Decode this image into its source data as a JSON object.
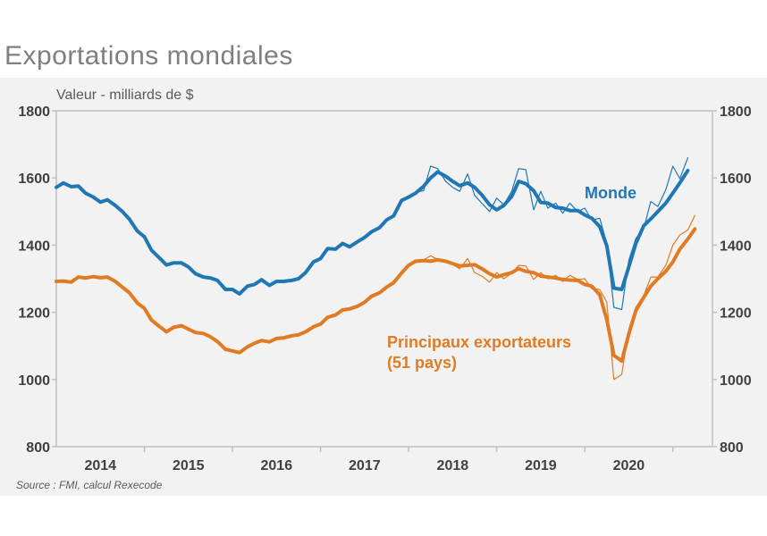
{
  "title": "Exportations mondiales",
  "colors": {
    "monde": "#1f77b4",
    "principaux": "#e07b24",
    "axis": "#bfbfbf",
    "panel": "#f2f2f2"
  },
  "chart_data": {
    "type": "line",
    "subtitle": "Valeur - milliards de $",
    "source": "Source : FMI, calcul Rexecode",
    "x_range": [
      2013.5,
      2020.95
    ],
    "ylim": [
      800,
      1800
    ],
    "yticks": [
      "800",
      "1000",
      "1200",
      "1400",
      "1600",
      "1800"
    ],
    "xticks": [
      "2014",
      "2015",
      "2016",
      "2017",
      "2018",
      "2019",
      "2020"
    ],
    "grid": false,
    "series": [
      {
        "name": "Monde",
        "color": "#1f77b4",
        "points": [
          [
            2013.5,
            1572
          ],
          [
            2013.58,
            1585
          ],
          [
            2013.67,
            1574
          ],
          [
            2013.75,
            1576
          ],
          [
            2013.83,
            1555
          ],
          [
            2013.92,
            1543
          ],
          [
            2014.0,
            1528
          ],
          [
            2014.08,
            1535
          ],
          [
            2014.17,
            1518
          ],
          [
            2014.25,
            1500
          ],
          [
            2014.33,
            1477
          ],
          [
            2014.42,
            1442
          ],
          [
            2014.5,
            1425
          ],
          [
            2014.58,
            1385
          ],
          [
            2014.67,
            1362
          ],
          [
            2014.75,
            1341
          ],
          [
            2014.83,
            1347
          ],
          [
            2014.92,
            1347
          ],
          [
            2015.0,
            1335
          ],
          [
            2015.08,
            1315
          ],
          [
            2015.17,
            1305
          ],
          [
            2015.25,
            1302
          ],
          [
            2015.33,
            1295
          ],
          [
            2015.42,
            1268
          ],
          [
            2015.5,
            1268
          ],
          [
            2015.58,
            1255
          ],
          [
            2015.67,
            1278
          ],
          [
            2015.75,
            1283
          ],
          [
            2015.83,
            1297
          ],
          [
            2015.92,
            1280
          ],
          [
            2016.0,
            1292
          ],
          [
            2016.08,
            1292
          ],
          [
            2016.17,
            1295
          ],
          [
            2016.25,
            1300
          ],
          [
            2016.33,
            1318
          ],
          [
            2016.42,
            1350
          ],
          [
            2016.5,
            1360
          ],
          [
            2016.58,
            1390
          ],
          [
            2016.67,
            1388
          ],
          [
            2016.75,
            1405
          ],
          [
            2016.83,
            1395
          ],
          [
            2016.92,
            1410
          ],
          [
            2017.0,
            1423
          ],
          [
            2017.08,
            1440
          ],
          [
            2017.17,
            1452
          ],
          [
            2017.25,
            1475
          ],
          [
            2017.33,
            1487
          ],
          [
            2017.42,
            1533
          ],
          [
            2017.5,
            1543
          ],
          [
            2017.58,
            1555
          ],
          [
            2017.67,
            1575
          ],
          [
            2017.75,
            1600
          ],
          [
            2017.83,
            1618
          ],
          [
            2017.92,
            1605
          ],
          [
            2018.0,
            1590
          ],
          [
            2018.08,
            1577
          ],
          [
            2018.17,
            1585
          ],
          [
            2018.25,
            1572
          ],
          [
            2018.33,
            1550
          ],
          [
            2018.42,
            1520
          ],
          [
            2018.5,
            1505
          ],
          [
            2018.58,
            1518
          ],
          [
            2018.67,
            1545
          ],
          [
            2018.75,
            1590
          ],
          [
            2018.83,
            1583
          ],
          [
            2018.92,
            1562
          ],
          [
            2019.0,
            1527
          ],
          [
            2019.08,
            1525
          ],
          [
            2019.17,
            1512
          ],
          [
            2019.25,
            1510
          ],
          [
            2019.33,
            1503
          ],
          [
            2019.42,
            1503
          ],
          [
            2019.5,
            1490
          ],
          [
            2019.58,
            1480
          ],
          [
            2019.67,
            1455
          ],
          [
            2019.75,
            1398
          ],
          [
            2019.83,
            1272
          ],
          [
            2019.92,
            1268
          ],
          [
            2020.0,
            1335
          ],
          [
            2020.08,
            1405
          ],
          [
            2020.17,
            1458
          ],
          [
            2020.25,
            1478
          ],
          [
            2020.33,
            1500
          ],
          [
            2020.42,
            1525
          ],
          [
            2020.5,
            1555
          ],
          [
            2020.58,
            1585
          ],
          [
            2020.67,
            1622
          ]
        ]
      },
      {
        "name": "Principaux exportateurs (51 pays)",
        "color": "#e07b24",
        "points": [
          [
            2013.5,
            1292
          ],
          [
            2013.58,
            1293
          ],
          [
            2013.67,
            1290
          ],
          [
            2013.75,
            1305
          ],
          [
            2013.83,
            1302
          ],
          [
            2013.92,
            1306
          ],
          [
            2014.0,
            1303
          ],
          [
            2014.08,
            1305
          ],
          [
            2014.17,
            1292
          ],
          [
            2014.25,
            1275
          ],
          [
            2014.33,
            1258
          ],
          [
            2014.42,
            1228
          ],
          [
            2014.5,
            1212
          ],
          [
            2014.58,
            1177
          ],
          [
            2014.67,
            1158
          ],
          [
            2014.75,
            1142
          ],
          [
            2014.83,
            1155
          ],
          [
            2014.92,
            1160
          ],
          [
            2015.0,
            1150
          ],
          [
            2015.08,
            1140
          ],
          [
            2015.17,
            1137
          ],
          [
            2015.25,
            1127
          ],
          [
            2015.33,
            1113
          ],
          [
            2015.42,
            1090
          ],
          [
            2015.5,
            1085
          ],
          [
            2015.58,
            1080
          ],
          [
            2015.67,
            1097
          ],
          [
            2015.75,
            1108
          ],
          [
            2015.83,
            1116
          ],
          [
            2015.92,
            1112
          ],
          [
            2016.0,
            1122
          ],
          [
            2016.08,
            1124
          ],
          [
            2016.17,
            1130
          ],
          [
            2016.25,
            1133
          ],
          [
            2016.33,
            1142
          ],
          [
            2016.42,
            1157
          ],
          [
            2016.5,
            1165
          ],
          [
            2016.58,
            1185
          ],
          [
            2016.67,
            1192
          ],
          [
            2016.75,
            1207
          ],
          [
            2016.83,
            1210
          ],
          [
            2016.92,
            1218
          ],
          [
            2017.0,
            1230
          ],
          [
            2017.08,
            1248
          ],
          [
            2017.17,
            1258
          ],
          [
            2017.25,
            1275
          ],
          [
            2017.33,
            1288
          ],
          [
            2017.42,
            1317
          ],
          [
            2017.5,
            1340
          ],
          [
            2017.58,
            1352
          ],
          [
            2017.67,
            1354
          ],
          [
            2017.75,
            1352
          ],
          [
            2017.83,
            1356
          ],
          [
            2017.92,
            1352
          ],
          [
            2018.0,
            1345
          ],
          [
            2018.08,
            1338
          ],
          [
            2018.17,
            1340
          ],
          [
            2018.25,
            1342
          ],
          [
            2018.33,
            1330
          ],
          [
            2018.42,
            1315
          ],
          [
            2018.5,
            1305
          ],
          [
            2018.58,
            1312
          ],
          [
            2018.67,
            1318
          ],
          [
            2018.75,
            1330
          ],
          [
            2018.83,
            1322
          ],
          [
            2018.92,
            1318
          ],
          [
            2019.0,
            1308
          ],
          [
            2019.08,
            1305
          ],
          [
            2019.17,
            1302
          ],
          [
            2019.25,
            1298
          ],
          [
            2019.33,
            1296
          ],
          [
            2019.42,
            1295
          ],
          [
            2019.5,
            1283
          ],
          [
            2019.58,
            1278
          ],
          [
            2019.67,
            1252
          ],
          [
            2019.75,
            1178
          ],
          [
            2019.83,
            1072
          ],
          [
            2019.92,
            1055
          ],
          [
            2020.0,
            1135
          ],
          [
            2020.08,
            1205
          ],
          [
            2020.17,
            1245
          ],
          [
            2020.25,
            1278
          ],
          [
            2020.33,
            1300
          ],
          [
            2020.42,
            1322
          ],
          [
            2020.5,
            1350
          ],
          [
            2020.58,
            1388
          ],
          [
            2020.67,
            1418
          ],
          [
            2020.75,
            1448
          ]
        ]
      },
      {
        "name": "Monde",
        "color": "#1f77b4",
        "points": [
          [
            2017.58,
            1558
          ],
          [
            2017.67,
            1562
          ],
          [
            2017.75,
            1635
          ],
          [
            2017.83,
            1628
          ],
          [
            2017.92,
            1590
          ],
          [
            2018.0,
            1572
          ],
          [
            2018.08,
            1560
          ],
          [
            2018.17,
            1612
          ],
          [
            2018.25,
            1548
          ],
          [
            2018.33,
            1525
          ],
          [
            2018.42,
            1500
          ],
          [
            2018.5,
            1540
          ],
          [
            2018.58,
            1520
          ],
          [
            2018.67,
            1560
          ],
          [
            2018.75,
            1628
          ],
          [
            2018.83,
            1625
          ],
          [
            2018.92,
            1505
          ],
          [
            2019.0,
            1560
          ],
          [
            2019.08,
            1510
          ],
          [
            2019.17,
            1525
          ],
          [
            2019.25,
            1495
          ],
          [
            2019.33,
            1525
          ],
          [
            2019.42,
            1500
          ],
          [
            2019.5,
            1510
          ],
          [
            2019.58,
            1475
          ],
          [
            2019.67,
            1480
          ],
          [
            2019.75,
            1405
          ],
          [
            2019.83,
            1215
          ],
          [
            2019.92,
            1208
          ],
          [
            2020.0,
            1355
          ],
          [
            2020.08,
            1420
          ],
          [
            2020.17,
            1450
          ],
          [
            2020.25,
            1530
          ],
          [
            2020.33,
            1515
          ],
          [
            2020.42,
            1565
          ],
          [
            2020.5,
            1635
          ],
          [
            2020.58,
            1598
          ],
          [
            2020.67,
            1660
          ]
        ]
      },
      {
        "name": "Principaux exportateurs (51 pays)",
        "color": "#e07b24",
        "points": [
          [
            2017.58,
            1350
          ],
          [
            2017.67,
            1356
          ],
          [
            2017.75,
            1368
          ],
          [
            2017.83,
            1358
          ],
          [
            2017.92,
            1350
          ],
          [
            2018.0,
            1342
          ],
          [
            2018.08,
            1330
          ],
          [
            2018.17,
            1360
          ],
          [
            2018.25,
            1318
          ],
          [
            2018.33,
            1308
          ],
          [
            2018.42,
            1290
          ],
          [
            2018.5,
            1318
          ],
          [
            2018.58,
            1300
          ],
          [
            2018.67,
            1316
          ],
          [
            2018.75,
            1340
          ],
          [
            2018.83,
            1338
          ],
          [
            2018.92,
            1298
          ],
          [
            2019.0,
            1318
          ],
          [
            2019.08,
            1300
          ],
          [
            2019.17,
            1310
          ],
          [
            2019.25,
            1292
          ],
          [
            2019.33,
            1310
          ],
          [
            2019.42,
            1298
          ],
          [
            2019.5,
            1300
          ],
          [
            2019.58,
            1270
          ],
          [
            2019.67,
            1268
          ],
          [
            2019.75,
            1230
          ],
          [
            2019.83,
            1000
          ],
          [
            2019.92,
            1015
          ],
          [
            2020.0,
            1150
          ],
          [
            2020.08,
            1215
          ],
          [
            2020.17,
            1250
          ],
          [
            2020.25,
            1305
          ],
          [
            2020.33,
            1305
          ],
          [
            2020.42,
            1340
          ],
          [
            2020.5,
            1400
          ],
          [
            2020.58,
            1430
          ],
          [
            2020.67,
            1445
          ],
          [
            2020.75,
            1488
          ]
        ]
      }
    ],
    "annotations": [
      "Monde",
      "Principaux exportateurs",
      "(51 pays)"
    ]
  }
}
